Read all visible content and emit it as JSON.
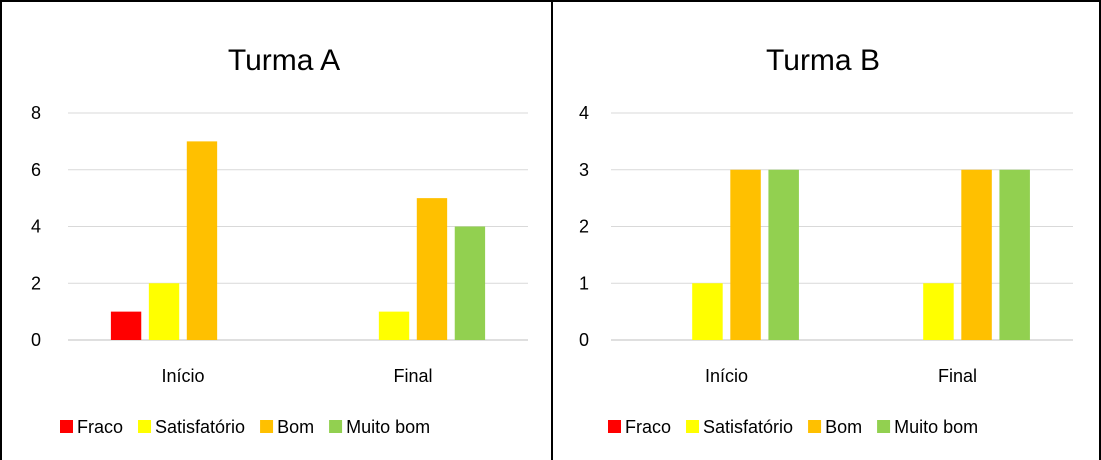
{
  "chart_data": [
    {
      "type": "bar",
      "title": "Turma A",
      "categories": [
        "Início",
        "Final"
      ],
      "series": [
        {
          "name": "Fraco",
          "values": [
            1,
            0
          ],
          "color": "#ff0000"
        },
        {
          "name": "Satisfatório",
          "values": [
            2,
            1
          ],
          "color": "#ffff00"
        },
        {
          "name": "Bom",
          "values": [
            7,
            5
          ],
          "color": "#ffc000"
        },
        {
          "name": "Muito bom",
          "values": [
            0,
            4
          ],
          "color": "#92d050"
        }
      ],
      "ylim": [
        0,
        8
      ],
      "yticks": [
        0,
        2,
        4,
        6,
        8
      ],
      "grid": true,
      "legend": "bottom"
    },
    {
      "type": "bar",
      "title": "Turma B",
      "categories": [
        "Início",
        "Final"
      ],
      "series": [
        {
          "name": "Fraco",
          "values": [
            0,
            0
          ],
          "color": "#ff0000"
        },
        {
          "name": "Satisfatório",
          "values": [
            1,
            1
          ],
          "color": "#ffff00"
        },
        {
          "name": "Bom",
          "values": [
            3,
            3
          ],
          "color": "#ffc000"
        },
        {
          "name": "Muito bom",
          "values": [
            3,
            3
          ],
          "color": "#92d050"
        }
      ],
      "ylim": [
        0,
        4
      ],
      "yticks": [
        0,
        1,
        2,
        3,
        4
      ],
      "grid": true,
      "legend": "bottom"
    }
  ]
}
